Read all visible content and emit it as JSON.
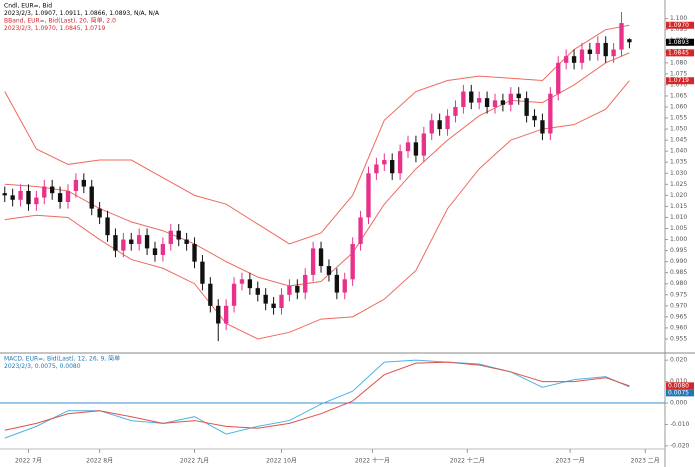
{
  "chart_data": [
    {
      "type": "candlestick",
      "header": [
        {
          "text": "Cndl, EUR=, Bid",
          "color": "#000000"
        },
        {
          "text": "2023/2/3, 1.0907, 1.0911, 1.0866, 1.0893, N/A, N/A",
          "color": "#000000"
        },
        {
          "text": "BBand, EUR=, Bid(Last), 20, 简单, 2.0",
          "color": "#d62728"
        },
        {
          "text": "2023/2/3, 1.0970, 1.0845, 1.0719",
          "color": "#d62728"
        }
      ],
      "up_color": "#e8318a",
      "down_color": "#111111",
      "band_color": "#ee6a5f",
      "xlim": [
        -0.6,
        83.5
      ],
      "ylim": [
        0.95,
        1.103
      ],
      "yticks": [
        0.955,
        {
          "value": 0.96,
          "label": "0.960"
        },
        0.965,
        {
          "value": 0.97,
          "label": "0.970"
        },
        0.975,
        {
          "value": 0.98,
          "label": "0.980"
        },
        0.985,
        {
          "value": 0.99,
          "label": "0.990"
        },
        0.995,
        {
          "value": 1,
          "label": "1.000"
        },
        1.005,
        {
          "value": 1.01,
          "label": "1.010"
        },
        1.015,
        {
          "value": 1.02,
          "label": "1.020"
        },
        1.025,
        {
          "value": 1.03,
          "label": "1.030"
        },
        1.035,
        {
          "value": 1.04,
          "label": "1.040"
        },
        1.045,
        {
          "value": 1.05,
          "label": "1.050"
        },
        1.055,
        {
          "value": 1.06,
          "label": "1.060"
        },
        1.065,
        {
          "value": 1.07,
          "label": "1.070"
        },
        1.075,
        {
          "value": 1.08,
          "label": "1.080"
        },
        1.085,
        {
          "value": 1.09,
          "label": "1.090"
        },
        1.095,
        {
          "value": 1.1,
          "label": "1.100"
        }
      ],
      "open": [
        1.021,
        1.02,
        1.018,
        1.022,
        1.016,
        1.019,
        1.024,
        1.021,
        1.017,
        1.022,
        1.027,
        1.024,
        1.014,
        1.01,
        1.002,
        0.995,
        1.0,
        0.998,
        1.002,
        0.996,
        0.993,
        0.998,
        1.004,
        1.0,
        0.998,
        0.99,
        0.98,
        0.97,
        0.962,
        0.97,
        0.98,
        0.982,
        0.978,
        0.975,
        0.971,
        0.969,
        0.975,
        0.979,
        0.976,
        0.984,
        0.996,
        0.988,
        0.984,
        0.976,
        0.982,
        0.998,
        1.01,
        1.03,
        1.034,
        1.036,
        1.03,
        1.04,
        1.044,
        1.038,
        1.048,
        1.054,
        1.05,
        1.056,
        1.06,
        1.067,
        1.062,
        1.064,
        1.06,
        1.063,
        1.061,
        1.066,
        1.064,
        1.056,
        1.054,
        1.048,
        1.066,
        1.08,
        1.083,
        1.08,
        1.086,
        1.084,
        1.089,
        1.083,
        1.086,
        1.0907
      ],
      "high": [
        1.024,
        1.023,
        1.025,
        1.025,
        1.022,
        1.027,
        1.027,
        1.024,
        1.025,
        1.03,
        1.03,
        1.027,
        1.017,
        1.013,
        1.005,
        1.003,
        1.003,
        1.005,
        1.005,
        0.999,
        1.001,
        1.007,
        1.007,
        1.003,
        1.001,
        0.993,
        0.983,
        0.973,
        0.973,
        0.983,
        0.985,
        0.985,
        0.981,
        0.978,
        0.974,
        0.978,
        0.982,
        0.982,
        0.987,
        0.999,
        0.999,
        0.991,
        0.987,
        0.985,
        1.001,
        1.013,
        1.033,
        1.037,
        1.039,
        1.039,
        1.043,
        1.047,
        1.047,
        1.051,
        1.057,
        1.057,
        1.059,
        1.063,
        1.07,
        1.07,
        1.067,
        1.067,
        1.066,
        1.066,
        1.069,
        1.069,
        1.067,
        1.059,
        1.057,
        1.069,
        1.083,
        1.086,
        1.086,
        1.089,
        1.089,
        1.092,
        1.092,
        1.089,
        1.103,
        1.0911
      ],
      "low": [
        1.017,
        1.015,
        1.015,
        1.013,
        1.013,
        1.016,
        1.018,
        1.014,
        1.014,
        1.019,
        1.021,
        1.011,
        1.007,
        0.999,
        0.992,
        0.992,
        0.995,
        0.995,
        0.993,
        0.99,
        0.99,
        0.995,
        0.997,
        0.995,
        0.987,
        0.977,
        0.967,
        0.954,
        0.959,
        0.967,
        0.977,
        0.975,
        0.972,
        0.968,
        0.966,
        0.966,
        0.972,
        0.973,
        0.973,
        0.981,
        0.985,
        0.981,
        0.973,
        0.973,
        0.979,
        0.995,
        1.007,
        1.027,
        1.031,
        1.027,
        1.027,
        1.037,
        1.035,
        1.035,
        1.045,
        1.047,
        1.047,
        1.053,
        1.057,
        1.059,
        1.059,
        1.057,
        1.057,
        1.058,
        1.058,
        1.061,
        1.053,
        1.051,
        1.045,
        1.045,
        1.063,
        1.077,
        1.077,
        1.077,
        1.081,
        1.081,
        1.08,
        1.08,
        1.083,
        1.0866
      ],
      "close": [
        1.02,
        1.018,
        1.022,
        1.016,
        1.019,
        1.024,
        1.021,
        1.017,
        1.022,
        1.027,
        1.024,
        1.014,
        1.01,
        1.002,
        0.995,
        1.0,
        0.998,
        1.002,
        0.996,
        0.993,
        0.998,
        1.004,
        1.0,
        0.998,
        0.99,
        0.98,
        0.97,
        0.962,
        0.97,
        0.98,
        0.982,
        0.978,
        0.975,
        0.971,
        0.969,
        0.975,
        0.979,
        0.976,
        0.984,
        0.996,
        0.988,
        0.984,
        0.976,
        0.982,
        0.998,
        1.01,
        1.03,
        1.034,
        1.036,
        1.03,
        1.04,
        1.044,
        1.038,
        1.048,
        1.054,
        1.05,
        1.056,
        1.06,
        1.067,
        1.062,
        1.064,
        1.06,
        1.063,
        1.061,
        1.066,
        1.064,
        1.056,
        1.054,
        1.048,
        1.066,
        1.08,
        1.083,
        1.08,
        1.086,
        1.084,
        1.089,
        1.083,
        1.086,
        1.098,
        1.0893
      ],
      "bands": {
        "x": [
          0,
          4,
          8,
          12,
          16,
          20,
          24,
          28,
          32,
          36,
          40,
          44,
          48,
          52,
          56,
          60,
          64,
          68,
          72,
          76,
          79
        ],
        "upper": [
          1.067,
          1.041,
          1.034,
          1.036,
          1.036,
          1.028,
          1.02,
          1.016,
          1.007,
          0.998,
          1.003,
          1.02,
          1.054,
          1.067,
          1.072,
          1.074,
          1.073,
          1.072,
          1.086,
          1.095,
          1.097
        ],
        "middle": [
          1.025,
          1.024,
          1.022,
          1.014,
          1.008,
          1.004,
          0.998,
          0.99,
          0.983,
          0.979,
          0.981,
          0.994,
          1.016,
          1.032,
          1.045,
          1.056,
          1.063,
          1.062,
          1.07,
          1.08,
          1.0845
        ],
        "lower": [
          1.009,
          1.011,
          1.01,
          1.0,
          0.991,
          0.987,
          0.98,
          0.962,
          0.955,
          0.958,
          0.964,
          0.965,
          0.973,
          0.986,
          1.014,
          1.032,
          1.045,
          1.05,
          1.052,
          1.059,
          1.0719
        ]
      },
      "price_labels": [
        {
          "value": 1.097,
          "label": "1.0970",
          "color": "#d62728"
        },
        {
          "value": 1.0893,
          "label": "1.0893",
          "color": "#000000"
        },
        {
          "value": 1.0845,
          "label": "1.0845",
          "color": "#d62728"
        },
        {
          "value": 1.0719,
          "label": "1.0719",
          "color": "#d62728"
        }
      ]
    },
    {
      "type": "line",
      "header": [
        {
          "text": "MACD, EUR=, Bid(Last), 12, 26, 9, 简单",
          "color": "#1f77b4"
        },
        {
          "text": "2023/2/3, 0.0075, 0.0080",
          "color": "#1f77b4"
        }
      ],
      "xlim": [
        -0.6,
        83.5
      ],
      "ylim": [
        -0.021,
        0.021
      ],
      "yticks": [
        {
          "value": -0.02,
          "label": "-0.020"
        },
        {
          "value": -0.01,
          "label": "-0.010"
        },
        {
          "value": 0,
          "label": "0.000"
        },
        {
          "value": 0.01,
          "label": "0.010"
        },
        {
          "value": 0.02,
          "label": "0.020"
        }
      ],
      "xticks": [
        {
          "value": 3,
          "label": "2022 7月"
        },
        {
          "value": 12,
          "label": "2022 8月"
        },
        {
          "value": 24,
          "label": "2022 九月"
        },
        {
          "value": 35,
          "label": "2022 10月"
        },
        {
          "value": 46.5,
          "label": "2022 十一月"
        },
        {
          "value": 58.5,
          "label": "2022 十二月"
        },
        {
          "value": 71.5,
          "label": "2023 一月"
        },
        {
          "value": 81,
          "label": "2023 二月"
        }
      ],
      "zero_line_color": "#3a8fd0",
      "x": [
        0,
        4,
        8,
        12,
        16,
        20,
        24,
        28,
        32,
        36,
        40,
        44,
        48,
        52,
        56,
        60,
        64,
        68,
        72,
        76,
        79
      ],
      "series": [
        {
          "color": "#4db3e6",
          "values": [
            -0.0164,
            -0.0109,
            -0.0036,
            -0.0036,
            -0.0082,
            -0.0095,
            -0.0064,
            -0.0145,
            -0.0109,
            -0.0082,
            -0.0005,
            0.0055,
            0.0191,
            0.02,
            0.0191,
            0.0182,
            0.0145,
            0.0073,
            0.0109,
            0.0123,
            0.0075
          ]
        },
        {
          "color": "#e0504a",
          "values": [
            -0.0127,
            -0.0095,
            -0.005,
            -0.0036,
            -0.0064,
            -0.0095,
            -0.0082,
            -0.0109,
            -0.0118,
            -0.0095,
            -0.005,
            0.0009,
            0.0132,
            0.0186,
            0.0191,
            0.0177,
            0.0145,
            0.01,
            0.01,
            0.0118,
            0.008
          ]
        }
      ],
      "price_labels": [
        {
          "value": 0.008,
          "label": "0.0080",
          "color": "#d62728"
        },
        {
          "value": 0.0075,
          "label": "0.0075",
          "color": "#1f77b4"
        }
      ]
    }
  ]
}
